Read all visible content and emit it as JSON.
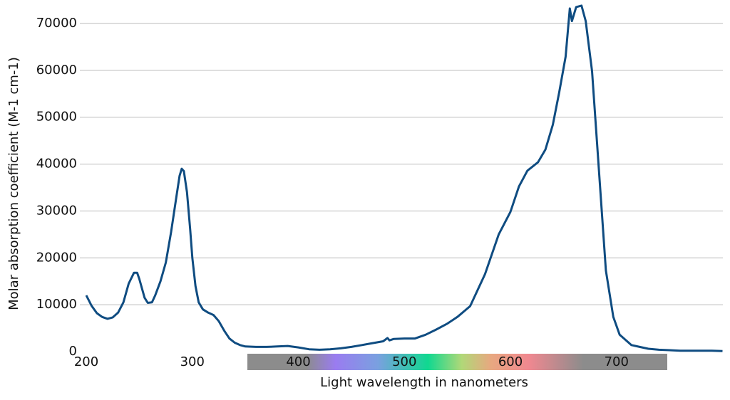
{
  "chart_data": {
    "type": "line",
    "xlabel": "Light wavelength in nanometers",
    "ylabel": "Molar absorption coefficient (M-1 cm-1)",
    "x": [
      200,
      205,
      210,
      215,
      220,
      225,
      230,
      235,
      240,
      245,
      248,
      250,
      255,
      258,
      262,
      265,
      270,
      275,
      280,
      285,
      288,
      290,
      292,
      295,
      298,
      300,
      303,
      306,
      310,
      315,
      320,
      325,
      330,
      335,
      340,
      345,
      350,
      360,
      370,
      380,
      390,
      400,
      410,
      420,
      430,
      440,
      450,
      460,
      470,
      480,
      484,
      486,
      490,
      500,
      510,
      520,
      530,
      540,
      550,
      562,
      576,
      589,
      600,
      608,
      616,
      626,
      633,
      640,
      646,
      652,
      656,
      658,
      662,
      667,
      671,
      677,
      683,
      690,
      697,
      703,
      714,
      730,
      740,
      750,
      760,
      770,
      780,
      790,
      800
    ],
    "series": [
      {
        "name": "absorption",
        "color": "#0f4c81",
        "values": [
          12000,
          9800,
          8200,
          7400,
          7000,
          7300,
          8300,
          10500,
          14500,
          16800,
          16800,
          15500,
          11500,
          10400,
          10500,
          12000,
          15000,
          19000,
          25500,
          33000,
          37500,
          39000,
          38500,
          34000,
          26000,
          20000,
          14000,
          10500,
          9000,
          8300,
          7800,
          6500,
          4500,
          2800,
          1900,
          1400,
          1100,
          1000,
          1000,
          1100,
          1200,
          900,
          500,
          400,
          500,
          700,
          1000,
          1400,
          1800,
          2200,
          2900,
          2400,
          2700,
          2800,
          2800,
          3600,
          4700,
          5900,
          7400,
          9700,
          16500,
          25000,
          29800,
          35200,
          38600,
          40400,
          43100,
          48400,
          55300,
          62900,
          73200,
          70500,
          73500,
          73800,
          70500,
          59800,
          40100,
          17300,
          7400,
          3600,
          1400,
          600,
          400,
          300,
          200,
          200,
          200,
          200,
          100
        ]
      }
    ],
    "xlim": [
      200,
      800
    ],
    "ylim": [
      0,
      75000
    ],
    "xticks": [
      200,
      300,
      400,
      500,
      600,
      700
    ],
    "yticks": [
      0,
      10000,
      20000,
      30000,
      40000,
      50000,
      60000,
      70000
    ],
    "grid": true
  }
}
